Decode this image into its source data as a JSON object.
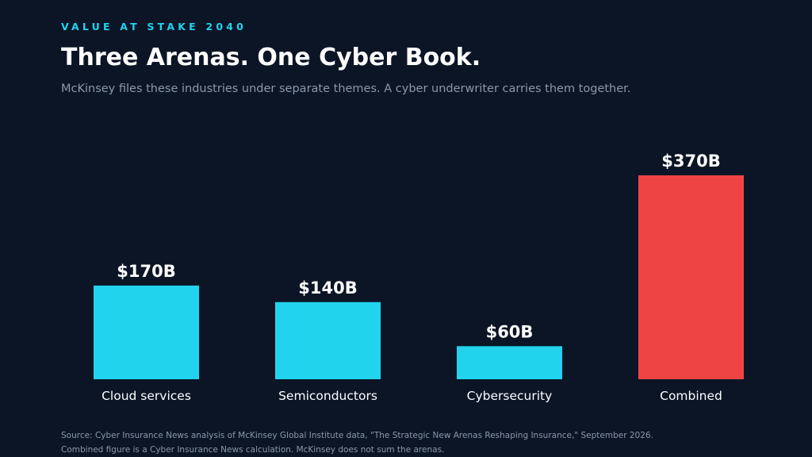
{
  "header": {
    "eyebrow": "VALUE AT STAKE 2040",
    "title": "Three Arenas. One Cyber Book.",
    "subtitle": "McKinsey files these industries under separate themes. A cyber underwriter carries them together."
  },
  "chart_data": {
    "type": "bar",
    "categories": [
      "Cloud services",
      "Semiconductors",
      "Cybersecurity",
      "Combined"
    ],
    "values": [
      170,
      140,
      60,
      370
    ],
    "value_labels": [
      "$170B",
      "$140B",
      "$60B",
      "$370B"
    ],
    "unit": "$B",
    "bar_colors": [
      "#22d3ee",
      "#22d3ee",
      "#22d3ee",
      "#ef4444"
    ],
    "ylim": [
      0,
      370
    ],
    "grid": false,
    "xlabel": "",
    "ylabel": ""
  },
  "colors": {
    "background": "#0b1526",
    "accent": "#22d3ee",
    "highlight": "#ef4444",
    "muted_text": "#8b98ab"
  },
  "footer": {
    "source_line1": "Source: Cyber Insurance News analysis of McKinsey Global Institute data, \"The Strategic New Arenas Reshaping Insurance,\" September 2026.",
    "source_line2": "Combined figure is a Cyber Insurance News calculation. McKinsey does not sum the arenas."
  }
}
